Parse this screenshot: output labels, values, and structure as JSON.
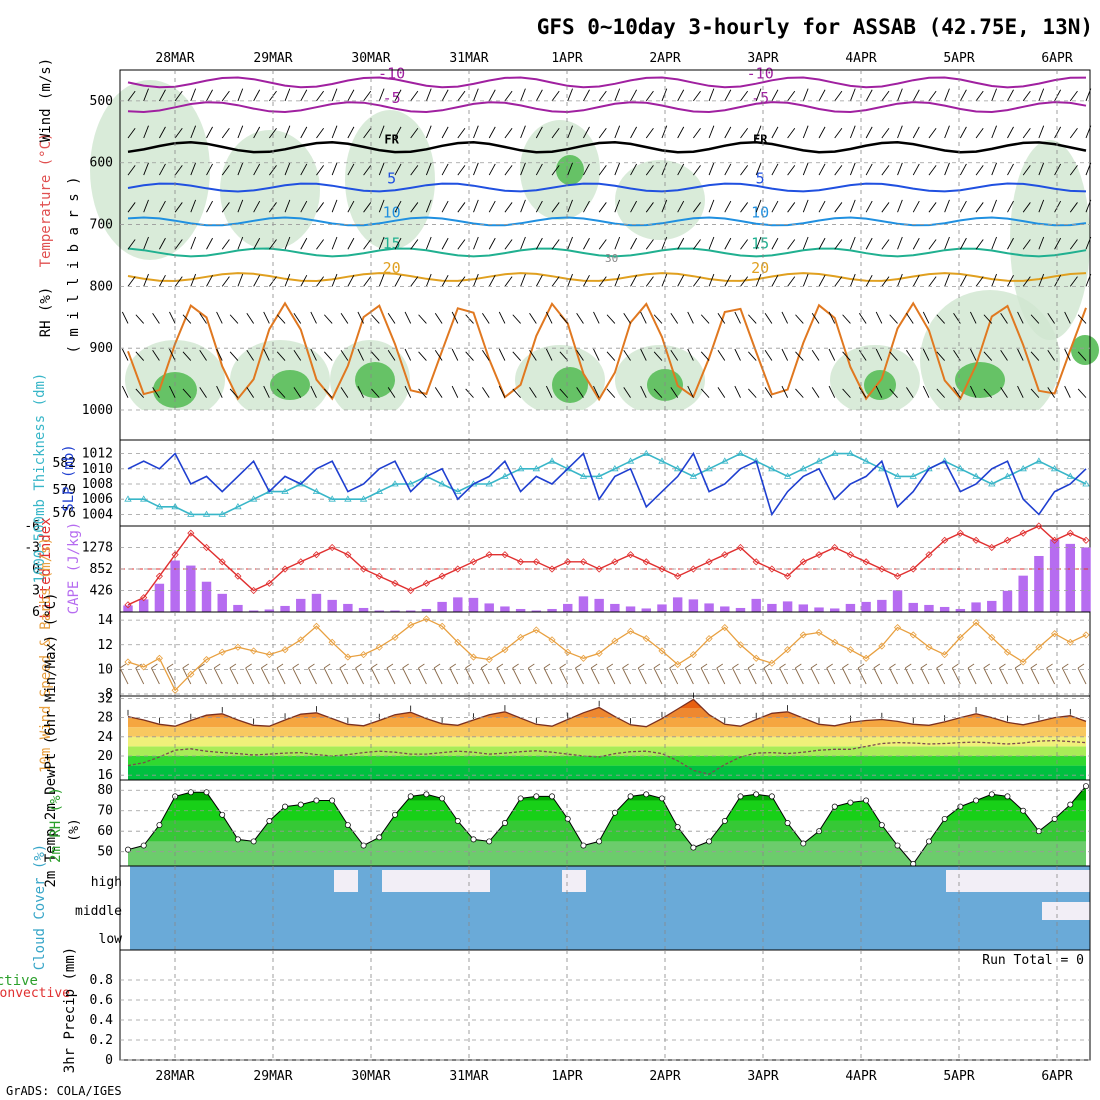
{
  "title": "GFS 0~10day 3-hourly for ASSAB (42.75E, 13N)",
  "footer": "GrADS: COLA/IGES",
  "dates": [
    "28MAR",
    "29MAR",
    "30MAR",
    "31MAR",
    "1APR",
    "2APR",
    "3APR",
    "4APR",
    "5APR",
    "6APR"
  ],
  "colors": {
    "slp": "#1f3fd0",
    "thickness": "#38b6c8",
    "lifted": "#e03030",
    "cape": "#b66cf0",
    "wind": "#e8a040",
    "dew": "#7a4a50",
    "cloud": "#6aaad8",
    "cloud_high": "#f2eef6",
    "rh_fill": "#00c800"
  },
  "chart_data": [
    {
      "id": "upper",
      "type": "heatmap",
      "ylabel_parts": [
        "RH (%)",
        "Temperature (°C)",
        "Wind (m/s)"
      ],
      "ylabel_units": "( m i l l i b a r s )",
      "y_ticks": [
        500,
        600,
        700,
        800,
        900,
        1000
      ],
      "ylim": [
        1000,
        450
      ],
      "isotherms": [
        {
          "label": "-10",
          "p": 470,
          "color": "#a020a0"
        },
        {
          "label": "-5",
          "p": 510,
          "color": "#a020a0"
        },
        {
          "label": "FR",
          "p": 575,
          "color": "#000000"
        },
        {
          "label": "5",
          "p": 640,
          "color": "#2050e0"
        },
        {
          "label": "10",
          "p": 695,
          "color": "#2090e0"
        },
        {
          "label": "15",
          "p": 745,
          "color": "#20b090"
        },
        {
          "label": "20",
          "p": 785,
          "color": "#e0a020"
        }
      ],
      "rh_label": "30"
    },
    {
      "id": "slp_thickness",
      "type": "line",
      "ylabel_left": "1000-500mb Thickness (dm)",
      "ylabel_right": "SLP (mb)",
      "thickness_ticks": [
        576,
        579,
        582
      ],
      "slp_ticks": [
        1004,
        1006,
        1008,
        1010,
        1012
      ],
      "slp_range": [
        1003,
        1013
      ],
      "slp": [
        1010,
        1011,
        1010,
        1012,
        1008,
        1009,
        1007,
        1009,
        1011,
        1007,
        1009,
        1008,
        1010,
        1011,
        1007,
        1008,
        1010,
        1011,
        1007,
        1009,
        1010,
        1006,
        1008,
        1009,
        1011,
        1007,
        1009,
        1008,
        1010,
        1012,
        1006,
        1009,
        1010,
        1005,
        1007,
        1009,
        1012,
        1007,
        1008,
        1010,
        1011,
        1004,
        1007,
        1009,
        1010,
        1006,
        1008,
        1009,
        1011,
        1005,
        1007,
        1010,
        1011,
        1007,
        1008,
        1010,
        1011,
        1006,
        1004,
        1007,
        1008,
        1010
      ],
      "thickness": [
        1006,
        1006,
        1005,
        1005,
        1004,
        1004,
        1004,
        1005,
        1006,
        1007,
        1007,
        1008,
        1007,
        1006,
        1006,
        1006,
        1007,
        1008,
        1008,
        1009,
        1008,
        1007,
        1008,
        1008,
        1009,
        1010,
        1010,
        1011,
        1010,
        1009,
        1009,
        1010,
        1011,
        1012,
        1011,
        1010,
        1009,
        1010,
        1011,
        1012,
        1011,
        1010,
        1009,
        1010,
        1011,
        1012,
        1012,
        1011,
        1010,
        1009,
        1009,
        1010,
        1011,
        1010,
        1009,
        1008,
        1009,
        1010,
        1011,
        1010,
        1009,
        1008
      ]
    },
    {
      "id": "cape_li",
      "type": "bar",
      "ylabel_left": "Lifted Index",
      "ylabel_right": "CAPE (J/kg)",
      "li_ticks": [
        -6,
        -3,
        0,
        3,
        6
      ],
      "cape_ticks": [
        426,
        852,
        1278
      ],
      "li_range": [
        -6,
        6
      ],
      "cape_range": [
        0,
        1704
      ],
      "lifted_index": [
        5,
        4,
        1,
        -2,
        -5,
        -3,
        -1,
        1,
        3,
        2,
        0,
        -1,
        -2,
        -3,
        -2,
        0,
        1,
        2,
        3,
        2,
        1,
        0,
        -1,
        -2,
        -2,
        -1,
        -1,
        0,
        -1,
        -1,
        0,
        -1,
        -2,
        -1,
        0,
        1,
        0,
        -1,
        -2,
        -3,
        -1,
        0,
        1,
        -1,
        -2,
        -3,
        -2,
        -1,
        0,
        1,
        0,
        -2,
        -4,
        -5,
        -4,
        -3,
        -4,
        -5,
        -6,
        -4,
        -5,
        -4
      ],
      "cape": [
        130,
        250,
        560,
        1020,
        920,
        600,
        360,
        140,
        30,
        50,
        120,
        260,
        360,
        240,
        160,
        80,
        30,
        30,
        30,
        60,
        200,
        290,
        280,
        170,
        110,
        60,
        30,
        60,
        160,
        310,
        260,
        160,
        110,
        70,
        150,
        290,
        250,
        170,
        110,
        80,
        260,
        160,
        210,
        150,
        90,
        70,
        160,
        200,
        240,
        430,
        180,
        140,
        100,
        60,
        190,
        220,
        420,
        720,
        1110,
        1440,
        1350,
        1280
      ]
    },
    {
      "id": "wind10m",
      "type": "line",
      "ylabel": "10m Wind Speed & Barbs (m/s)",
      "y_ticks": [
        8,
        10,
        12,
        14
      ],
      "ylim": [
        8,
        14.5
      ],
      "values": [
        10.6,
        10.2,
        10.9,
        8.3,
        9.6,
        10.8,
        11.4,
        11.8,
        11.5,
        11.2,
        11.6,
        12.4,
        13.5,
        12.2,
        11.0,
        11.2,
        11.8,
        12.6,
        13.6,
        14.1,
        13.5,
        12.2,
        11.0,
        10.8,
        11.6,
        12.6,
        13.2,
        12.4,
        11.4,
        10.9,
        11.3,
        12.3,
        13.1,
        12.5,
        11.5,
        10.4,
        11.2,
        12.5,
        13.4,
        12.0,
        10.9,
        10.5,
        11.6,
        12.8,
        13.0,
        12.2,
        11.6,
        10.9,
        11.9,
        13.4,
        12.8,
        11.8,
        11.2,
        12.6,
        13.8,
        12.6,
        11.4,
        10.6,
        11.8,
        12.9,
        12.2,
        12.8
      ]
    },
    {
      "id": "temp2m",
      "type": "area",
      "ylabel": "2m Temp 2m DewPt (6hr Min/Max) (°C)",
      "y_ticks": [
        16,
        20,
        24,
        28,
        32
      ],
      "ylim": [
        15,
        32.5
      ],
      "temp": [
        28.2,
        27.5,
        26.6,
        26.2,
        27.4,
        28.5,
        28.8,
        27.5,
        26.4,
        26.2,
        27.5,
        28.7,
        29.0,
        27.8,
        26.6,
        26.3,
        27.4,
        28.6,
        29.1,
        27.8,
        26.7,
        26.4,
        27.5,
        28.6,
        29.2,
        27.9,
        26.6,
        26.2,
        27.6,
        29.0,
        30.1,
        28.2,
        26.5,
        26.1,
        27.8,
        29.8,
        31.8,
        28.6,
        26.6,
        26.2,
        27.6,
        28.9,
        29.2,
        27.9,
        26.6,
        26.3,
        27.0,
        27.4,
        27.6,
        27.2,
        26.6,
        26.4,
        27.1,
        28.0,
        28.8,
        28.0,
        27.0,
        26.5,
        27.2,
        28.0,
        28.4,
        27.2
      ],
      "dewpoint": [
        18.0,
        18.6,
        19.8,
        21.2,
        21.5,
        21.0,
        20.7,
        20.5,
        20.2,
        20.4,
        20.6,
        20.7,
        20.3,
        20.0,
        20.3,
        20.7,
        21.0,
        20.8,
        20.4,
        20.4,
        20.7,
        21.0,
        20.8,
        20.4,
        20.6,
        20.9,
        21.1,
        20.8,
        20.4,
        20.0,
        19.8,
        20.5,
        20.9,
        21.0,
        20.5,
        19.0,
        17.0,
        16.2,
        18.2,
        19.8,
        20.6,
        20.7,
        20.5,
        20.8,
        21.2,
        21.4,
        21.4,
        22.0,
        22.6,
        22.8,
        22.7,
        22.5,
        22.6,
        22.8,
        22.9,
        22.7,
        22.5,
        22.7,
        23.1,
        23.2,
        23.0,
        22.8
      ]
    },
    {
      "id": "rh2m",
      "type": "area",
      "ylabel": "2m RH (%)",
      "y_ticks": [
        50,
        60,
        70,
        80
      ],
      "ylim": [
        43,
        85
      ],
      "values": [
        51,
        53,
        63,
        77,
        79,
        79,
        68,
        56,
        55,
        65,
        72,
        73,
        75,
        75,
        63,
        53,
        57,
        68,
        77,
        78,
        76,
        65,
        56,
        55,
        64,
        76,
        77,
        77,
        66,
        53,
        55,
        69,
        77,
        78,
        76,
        62,
        52,
        55,
        65,
        77,
        78,
        77,
        64,
        54,
        60,
        72,
        74,
        75,
        63,
        53,
        44,
        55,
        66,
        72,
        75,
        78,
        77,
        70,
        60,
        66,
        73,
        82
      ]
    },
    {
      "id": "cloud",
      "type": "heatmap",
      "ylabel": "Cloud Cover (%)",
      "levels": [
        "high",
        "middle",
        "low"
      ],
      "high_cover": [
        0,
        0,
        0,
        0,
        0,
        0,
        0,
        0,
        0,
        0,
        0,
        0,
        0,
        0,
        0,
        0,
        0,
        1,
        1,
        0,
        0,
        1,
        1,
        1,
        1,
        1,
        1,
        1,
        1,
        1,
        0,
        0,
        0,
        0,
        0,
        0,
        1,
        1,
        0,
        0,
        0,
        0,
        0,
        0,
        0,
        0,
        0,
        0,
        0,
        0,
        0,
        0,
        0,
        0,
        0,
        0,
        0,
        0,
        0,
        0,
        0,
        0,
        0,
        0,
        0,
        0,
        0,
        0,
        1,
        1,
        1,
        1,
        1,
        1,
        1,
        1,
        1,
        1,
        1,
        1
      ],
      "mid_cover": [
        0,
        0,
        0,
        0,
        0,
        0,
        0,
        0,
        0,
        0,
        0,
        0,
        0,
        0,
        0,
        0,
        0,
        0,
        0,
        0,
        0,
        0,
        0,
        0,
        0,
        0,
        0,
        0,
        0,
        0,
        0,
        0,
        0,
        0,
        0,
        0,
        0,
        0,
        0,
        0,
        0,
        0,
        0,
        0,
        0,
        0,
        0,
        0,
        0,
        0,
        0,
        0,
        0,
        0,
        0,
        0,
        0,
        0,
        0,
        0,
        0,
        0,
        0,
        0,
        0,
        0,
        0,
        0,
        0,
        0,
        0,
        0,
        0,
        0,
        0,
        0,
        1,
        1,
        1,
        1
      ]
    },
    {
      "id": "precip",
      "type": "bar",
      "ylabel_left": "Total / Rain Convective",
      "ylabel_right": "3hr Precip (mm)",
      "y_ticks": [
        0,
        0.2,
        0.4,
        0.6,
        0.8
      ],
      "ylim": [
        0,
        1
      ],
      "run_total": "Run Total = 0",
      "values": []
    }
  ]
}
